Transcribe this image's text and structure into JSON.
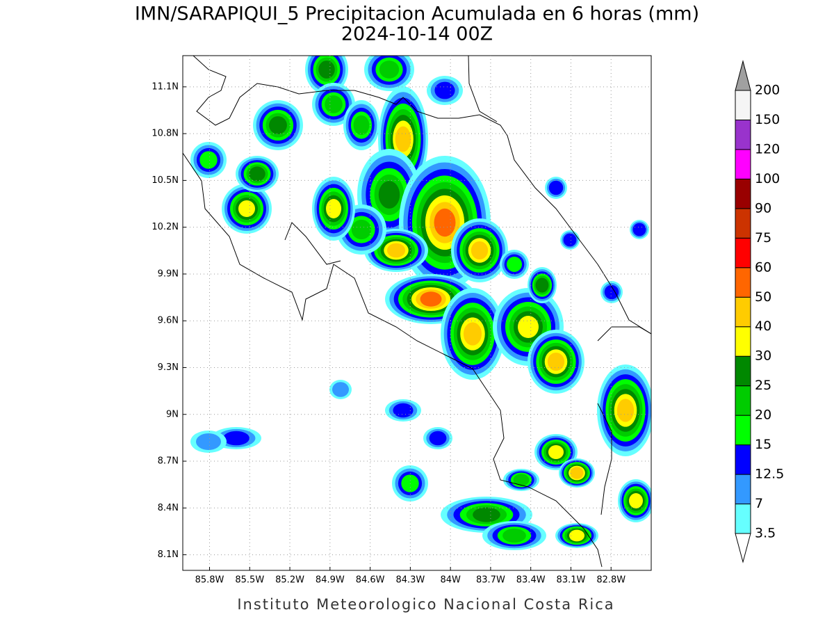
{
  "map": {
    "title": "IMN/SARAPIQUI_5 Precipitacion Acumulada en 6 horas (mm)",
    "subtitle": "2024-10-14 00Z",
    "footer": "Instituto Meteorologico Nacional Costa Rica",
    "xlim": [
      -86.0,
      -82.5
    ],
    "ylim": [
      8.0,
      11.3
    ],
    "xticks": [
      {
        "value": -85.8,
        "label": "85.8W"
      },
      {
        "value": -85.5,
        "label": "85.5W"
      },
      {
        "value": -85.2,
        "label": "85.2W"
      },
      {
        "value": -84.9,
        "label": "84.9W"
      },
      {
        "value": -84.6,
        "label": "84.6W"
      },
      {
        "value": -84.3,
        "label": "84.3W"
      },
      {
        "value": -84.0,
        "label": "84W"
      },
      {
        "value": -83.7,
        "label": "83.7W"
      },
      {
        "value": -83.4,
        "label": "83.4W"
      },
      {
        "value": -83.1,
        "label": "83.1W"
      },
      {
        "value": -82.8,
        "label": "82.8W"
      }
    ],
    "yticks": [
      {
        "value": 8.1,
        "label": "8.1N"
      },
      {
        "value": 8.4,
        "label": "8.4N"
      },
      {
        "value": 8.7,
        "label": "8.7N"
      },
      {
        "value": 9.0,
        "label": "9N"
      },
      {
        "value": 9.3,
        "label": "9.3N"
      },
      {
        "value": 9.6,
        "label": "9.6N"
      },
      {
        "value": 9.9,
        "label": "9.9N"
      },
      {
        "value": 10.2,
        "label": "10.2N"
      },
      {
        "value": 10.5,
        "label": "10.5N"
      },
      {
        "value": 10.8,
        "label": "10.8N"
      },
      {
        "value": 11.1,
        "label": "11.1N"
      }
    ],
    "grid": true,
    "levels": [
      3.5,
      7,
      12.5,
      15,
      20,
      25,
      30,
      40,
      50,
      60,
      75,
      90,
      100,
      120,
      150,
      200
    ],
    "colors": [
      "#ffffff",
      "#66ffff",
      "#3399ff",
      "#0000ff",
      "#00ff00",
      "#00cc00",
      "#008800",
      "#ffff00",
      "#ffcc00",
      "#ff6600",
      "#ff0000",
      "#cc3300",
      "#990000",
      "#ff00ff",
      "#9933cc",
      "#f5f5f5",
      "#a0a0a0"
    ]
  }
}
